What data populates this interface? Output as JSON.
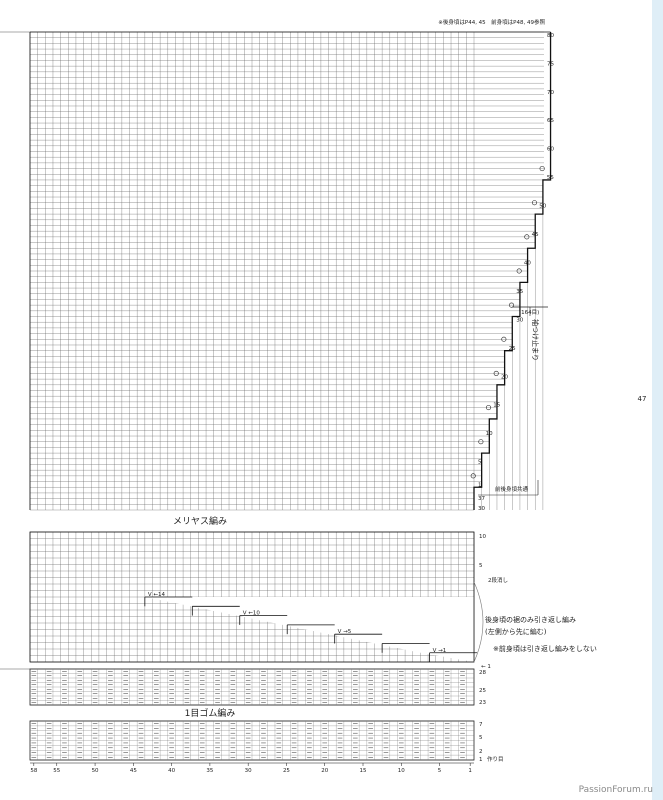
{
  "header": {
    "reference_note": "※後身頃はP44, 45　前身頃はP48, 49参照"
  },
  "page_number": "47",
  "watermark": "PassionForum.ru",
  "sections": {
    "stockinette": {
      "title": "メリヤス編み"
    },
    "rib": {
      "title": "1目ゴム編み"
    }
  },
  "annotations": {
    "sleeve_mark": "袖つけ止まり",
    "row_164": "(164目)",
    "shared_front_back": "前後身頃共通",
    "short_rows_title": "後身頃の裾のみ引き返し編み",
    "short_rows_sub": "(左側から先に編む)",
    "short_rows_note": "※前身頃は引き返し編みをしない",
    "two_rows_dec": "2段消し",
    "cast_on": "作り目"
  },
  "stockinette_grid": {
    "columns": 58,
    "upper_rows": 80,
    "row_labels_upper": [
      "1",
      "5",
      "10",
      "15",
      "20",
      "25",
      "30",
      "35",
      "40",
      "45",
      "50",
      "55",
      "60",
      "65",
      "70",
      "75",
      "80"
    ],
    "extra_row_labels": [
      "37",
      "30"
    ]
  },
  "short_row_grid": {
    "rows": 10,
    "row_labels": [
      "5",
      "10"
    ],
    "steps": [
      {
        "label": "14",
        "arrow": "←"
      },
      {
        "label": "",
        "arrow": ""
      },
      {
        "label": "10",
        "arrow": "←"
      },
      {
        "label": "",
        "arrow": ""
      },
      {
        "label": "5",
        "arrow": "→"
      },
      {
        "label": "",
        "arrow": ""
      },
      {
        "label": "1",
        "arrow": "→"
      }
    ],
    "marker_1": "1"
  },
  "rib_grid": {
    "upper_row_labels": [
      "28",
      "25",
      "23"
    ],
    "lower_row_labels": [
      "7",
      "5",
      "2",
      "1"
    ]
  },
  "stitch_axis": {
    "labels": [
      "58",
      "55",
      "50",
      "45",
      "40",
      "35",
      "30",
      "25",
      "20",
      "15",
      "10",
      "5",
      "1"
    ]
  }
}
